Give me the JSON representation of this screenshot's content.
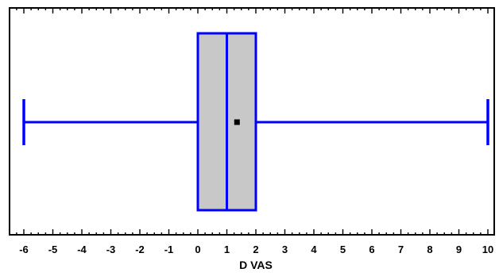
{
  "chart_data": {
    "type": "box",
    "xlabel": "D VAS",
    "xlim": [
      -6.5,
      10.1
    ],
    "ticks": [
      "-6",
      "-5",
      "-4",
      "-3",
      "-2",
      "-1",
      "0",
      "1",
      "2",
      "3",
      "4",
      "5",
      "6",
      "7",
      "8",
      "9",
      "10"
    ],
    "tick_values": [
      -6,
      -5,
      -4,
      -3,
      -2,
      -1,
      0,
      1,
      2,
      3,
      4,
      5,
      6,
      7,
      8,
      9,
      10
    ],
    "orientation": "horizontal",
    "grid": false,
    "box": {
      "min": -6,
      "q1": 0,
      "median": 1,
      "q3": 2,
      "max": 10,
      "mean": 1.35
    },
    "colors": {
      "box_fill": "#c8c8c8",
      "box_stroke": "#0000ff",
      "whisker": "#0000ff",
      "mean_marker": "#000000",
      "axis": "#000000"
    }
  }
}
